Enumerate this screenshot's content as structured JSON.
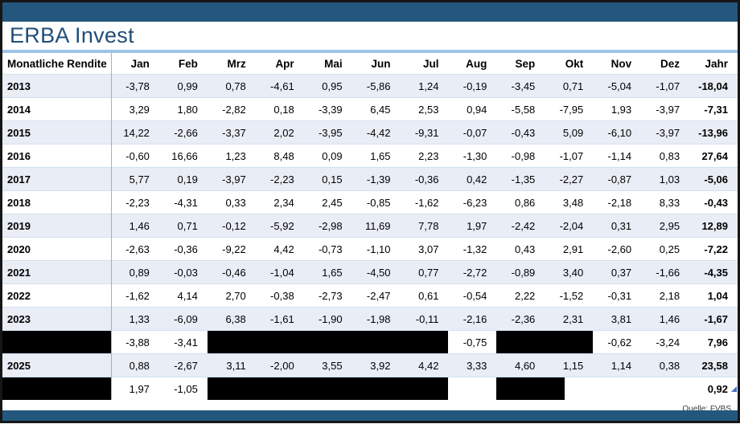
{
  "window": {
    "title": "ERBA Invest"
  },
  "footer": {
    "source": "Quelle: FVBS"
  },
  "colors": {
    "bar_dark_blue": "#24577E",
    "title_blue": "#1F4E79",
    "rule_light_blue": "#9DC3E6",
    "row_shade": "#E9EDF5",
    "redaction_black": "#000000",
    "frame_black": "#161616",
    "corner_marker_blue": "#4472C4"
  },
  "chart_data": {
    "type": "table",
    "title": "ERBA Invest",
    "corner_header": "Monatliche Rendite",
    "month_headers": [
      "Jan",
      "Feb",
      "Mrz",
      "Apr",
      "Mai",
      "Jun",
      "Jul",
      "Aug",
      "Sep",
      "Okt",
      "Nov",
      "Dez"
    ],
    "total_header": "Jahr",
    "rows": [
      {
        "year": "2013",
        "year_redacted": false,
        "shaded": true,
        "cells": [
          "-3,78",
          "0,99",
          "0,78",
          "-4,61",
          "0,95",
          "-5,86",
          "1,24",
          "-0,19",
          "-3,45",
          "0,71",
          "-5,04",
          "-1,07"
        ],
        "redacted": [],
        "partial_redacted": [],
        "total": "-18,04"
      },
      {
        "year": "2014",
        "year_redacted": false,
        "shaded": false,
        "cells": [
          "3,29",
          "1,80",
          "-2,82",
          "0,18",
          "-3,39",
          "6,45",
          "2,53",
          "0,94",
          "-5,58",
          "-7,95",
          "1,93",
          "-3,97"
        ],
        "redacted": [],
        "partial_redacted": [],
        "total": "-7,31"
      },
      {
        "year": "2015",
        "year_redacted": false,
        "shaded": true,
        "cells": [
          "14,22",
          "-2,66",
          "-3,37",
          "2,02",
          "-3,95",
          "-4,42",
          "-9,31",
          "-0,07",
          "-0,43",
          "5,09",
          "-6,10",
          "-3,97"
        ],
        "redacted": [],
        "partial_redacted": [],
        "total": "-13,96"
      },
      {
        "year": "2016",
        "year_redacted": false,
        "shaded": false,
        "cells": [
          "-0,60",
          "16,66",
          "1,23",
          "8,48",
          "0,09",
          "1,65",
          "2,23",
          "-1,30",
          "-0,98",
          "-1,07",
          "-1,14",
          "0,83"
        ],
        "redacted": [],
        "partial_redacted": [],
        "total": "27,64"
      },
      {
        "year": "2017",
        "year_redacted": false,
        "shaded": true,
        "cells": [
          "5,77",
          "0,19",
          "-3,97",
          "-2,23",
          "0,15",
          "-1,39",
          "-0,36",
          "0,42",
          "-1,35",
          "-2,27",
          "-0,87",
          "1,03"
        ],
        "redacted": [],
        "partial_redacted": [],
        "total": "-5,06"
      },
      {
        "year": "2018",
        "year_redacted": false,
        "shaded": false,
        "cells": [
          "-2,23",
          "-4,31",
          "0,33",
          "2,34",
          "2,45",
          "-0,85",
          "-1,62",
          "-6,23",
          "0,86",
          "3,48",
          "-2,18",
          "8,33"
        ],
        "redacted": [],
        "partial_redacted": [],
        "total": "-0,43"
      },
      {
        "year": "2019",
        "year_redacted": false,
        "shaded": true,
        "cells": [
          "1,46",
          "0,71",
          "-0,12",
          "-5,92",
          "-2,98",
          "11,69",
          "7,78",
          "1,97",
          "-2,42",
          "-2,04",
          "0,31",
          "2,95"
        ],
        "redacted": [],
        "partial_redacted": [],
        "total": "12,89"
      },
      {
        "year": "2020",
        "year_redacted": false,
        "shaded": false,
        "cells": [
          "-2,63",
          "-0,36",
          "-9,22",
          "4,42",
          "-0,73",
          "-1,10",
          "3,07",
          "-1,32",
          "0,43",
          "2,91",
          "-2,60",
          "0,25"
        ],
        "redacted": [],
        "partial_redacted": [],
        "total": "-7,22"
      },
      {
        "year": "2021",
        "year_redacted": false,
        "shaded": true,
        "cells": [
          "0,89",
          "-0,03",
          "-0,46",
          "-1,04",
          "1,65",
          "-4,50",
          "0,77",
          "-2,72",
          "-0,89",
          "3,40",
          "0,37",
          "-1,66"
        ],
        "redacted": [],
        "partial_redacted": [],
        "total": "-4,35"
      },
      {
        "year": "2022",
        "year_redacted": false,
        "shaded": false,
        "cells": [
          "-1,62",
          "4,14",
          "2,70",
          "-0,38",
          "-2,73",
          "-2,47",
          "0,61",
          "-0,54",
          "2,22",
          "-1,52",
          "-0,31",
          "2,18"
        ],
        "redacted": [],
        "partial_redacted": [],
        "total": "1,04"
      },
      {
        "year": "2023",
        "year_redacted": false,
        "shaded": true,
        "cells": [
          "1,33",
          "-6,09",
          "6,38",
          "-1,61",
          "-1,90",
          "-1,98",
          "-0,11",
          "-2,16",
          "-2,36",
          "2,31",
          "3,81",
          "1,46"
        ],
        "redacted": [],
        "partial_redacted": [],
        "total": "-1,67"
      },
      {
        "year": "",
        "year_redacted": true,
        "shaded": false,
        "cells": [
          "-3,88",
          "-3,41",
          "",
          "",
          "",
          "",
          "",
          "-0,75",
          "",
          "",
          "-0,62",
          "-3,24"
        ],
        "redacted": [
          2,
          3,
          4,
          5,
          6,
          8,
          9
        ],
        "partial_redacted": [],
        "total": "7,96"
      },
      {
        "year": "2025",
        "year_redacted": false,
        "shaded": true,
        "cells": [
          "0,88",
          "-2,67",
          "3,11",
          "-2,00",
          "3,55",
          "3,92",
          "4,42",
          "3,33",
          "4,60",
          "1,15",
          "1,14",
          "0,38"
        ],
        "redacted": [],
        "partial_redacted": [],
        "total": "23,58"
      },
      {
        "year": "",
        "year_redacted": true,
        "shaded": false,
        "cells": [
          "1,97",
          "-1,05",
          "",
          "",
          "",
          "",
          "",
          "",
          "",
          "",
          "",
          ""
        ],
        "redacted": [
          2,
          3,
          4,
          5,
          6,
          8
        ],
        "partial_redacted": [
          9
        ],
        "total": "0,92"
      }
    ]
  }
}
